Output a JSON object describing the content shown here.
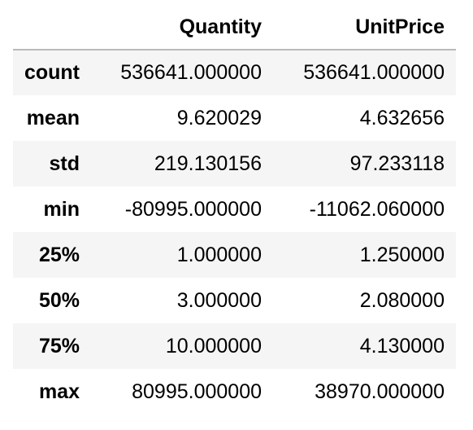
{
  "table": {
    "columns": [
      "",
      "Quantity",
      "UnitPrice"
    ],
    "rows": [
      {
        "stat": "count",
        "quantity": "536641.000000",
        "unit_price": "536641.000000"
      },
      {
        "stat": "mean",
        "quantity": "9.620029",
        "unit_price": "4.632656"
      },
      {
        "stat": "std",
        "quantity": "219.130156",
        "unit_price": "97.233118"
      },
      {
        "stat": "min",
        "quantity": "-80995.000000",
        "unit_price": "-11062.060000"
      },
      {
        "stat": "25%",
        "quantity": "1.000000",
        "unit_price": "1.250000"
      },
      {
        "stat": "50%",
        "quantity": "3.000000",
        "unit_price": "2.080000"
      },
      {
        "stat": "75%",
        "quantity": "10.000000",
        "unit_price": "4.130000"
      },
      {
        "stat": "max",
        "quantity": "80995.000000",
        "unit_price": "38970.000000"
      }
    ]
  },
  "colors": {
    "stripe": "#f5f5f5",
    "header_rule": "#b9b9b9"
  }
}
